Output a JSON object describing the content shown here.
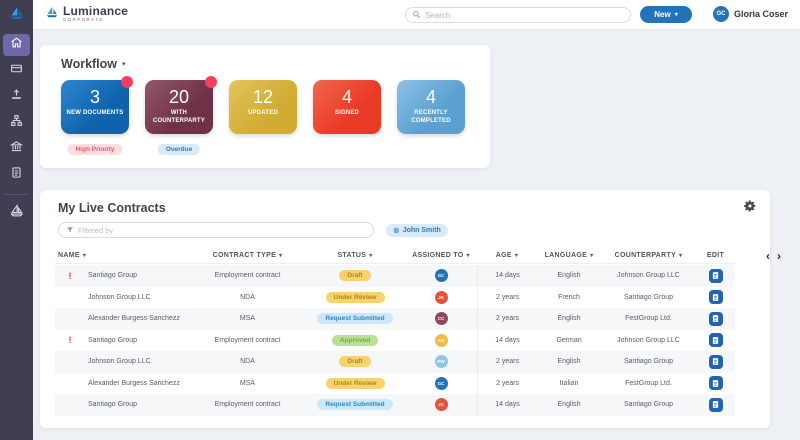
{
  "topbar": {
    "brand": "Luminance",
    "brand_sub": "CORPORATE",
    "search_placeholder": "Search",
    "new_label": "New",
    "user_initials": "GC",
    "user_name": "Gloria Coser"
  },
  "workflow": {
    "title": "Workflow",
    "cards": [
      {
        "count": "3",
        "label": "NEW DOCUMENTS",
        "color": "#0f63ad",
        "color_light": "#2e86cd",
        "dot": true,
        "tag": {
          "label": "High Priority",
          "bg": "#fcdfe3",
          "fg": "#ef5466"
        }
      },
      {
        "count": "20",
        "label": "WITH COUNTERPARTY",
        "color": "#6f3148",
        "color_light": "#95576d",
        "dot": true,
        "tag": {
          "label": "Overdue",
          "bg": "#d9eafa",
          "fg": "#2a7bc0"
        }
      },
      {
        "count": "12",
        "label": "UPDATED",
        "color": "#d2ac32",
        "color_light": "#e2c45f",
        "dot": false,
        "tag": null
      },
      {
        "count": "4",
        "label": "SIGNED",
        "color": "#e93a26",
        "color_light": "#f2664d",
        "dot": false,
        "tag": null
      },
      {
        "count": "4",
        "label": "RECENTLY COMPLETED",
        "color": "#5ba0d0",
        "color_light": "#8cc0e6",
        "dot": false,
        "tag": null
      }
    ]
  },
  "contracts": {
    "title": "My Live Contracts",
    "filter_placeholder": "Filtered by",
    "chip_label": "John Smith",
    "columns": [
      {
        "label": "NAME",
        "sortable": true,
        "align": "left"
      },
      {
        "label": "CONTRACT TYPE",
        "sortable": true
      },
      {
        "label": "STATUS",
        "sortable": true
      },
      {
        "label": "ASSIGNED TO",
        "sortable": true
      },
      {
        "label": "AGE",
        "sortable": true,
        "divider": true
      },
      {
        "label": "LANGUAGE",
        "sortable": true
      },
      {
        "label": "COUNTERPARTY",
        "sortable": true
      },
      {
        "label": "EDIT",
        "sortable": false
      }
    ],
    "status_colors": {
      "Draft": {
        "bg": "#f6d36e",
        "fg": "#b08415"
      },
      "Under Review": {
        "bg": "#f6d36e",
        "fg": "#b08415"
      },
      "Request Submitted": {
        "bg": "#cde8f8",
        "fg": "#2e86c7"
      },
      "Approved": {
        "bg": "#b9e195",
        "fg": "#78a741"
      }
    },
    "rows": [
      {
        "urgent": true,
        "name": "Santiago Group",
        "type": "Employment contract",
        "status": "Draft",
        "avatar": "GC",
        "avatar_color": "#2272b9",
        "age": "14 days",
        "language": "English",
        "counterparty": "Johnson Group LLC"
      },
      {
        "urgent": false,
        "name": "Johnson Group LLC",
        "type": "NDA",
        "status": "Under Review",
        "avatar": "JK",
        "avatar_color": "#e8503a",
        "age": "2 years",
        "language": "French",
        "counterparty": "Santiago Group"
      },
      {
        "urgent": false,
        "name": "Alexander Burgess Sanchezz",
        "type": "MSA",
        "status": "Request Submitted",
        "avatar": "CC",
        "avatar_color": "#8e4a5e",
        "age": "2 years",
        "language": "English",
        "counterparty": "FestGroup Ltd."
      },
      {
        "urgent": true,
        "name": "Santiago Group",
        "type": "Employment contract",
        "status": "Approved",
        "avatar": "AB",
        "avatar_color": "#f2bc43",
        "age": "14 days",
        "language": "German",
        "counterparty": "Johnson Group LLC"
      },
      {
        "urgent": false,
        "name": "Johnson Group LLC",
        "type": "NDA",
        "status": "Draft",
        "avatar": "PW",
        "avatar_color": "#8ec6ea",
        "age": "2 years",
        "language": "English",
        "counterparty": "Santiago Group"
      },
      {
        "urgent": false,
        "name": "Alexander Burgess Sanchezz",
        "type": "MSA",
        "status": "Under Review",
        "avatar": "GC",
        "avatar_color": "#2272b9",
        "age": "2 years",
        "language": "Italian",
        "counterparty": "FestGroup Ltd."
      },
      {
        "urgent": false,
        "name": "Santiago Group",
        "type": "Employment contract",
        "status": "Request Submitted",
        "avatar": "JK",
        "avatar_color": "#e8503a",
        "age": "14 days",
        "language": "English",
        "counterparty": "Santiago Group"
      }
    ]
  }
}
